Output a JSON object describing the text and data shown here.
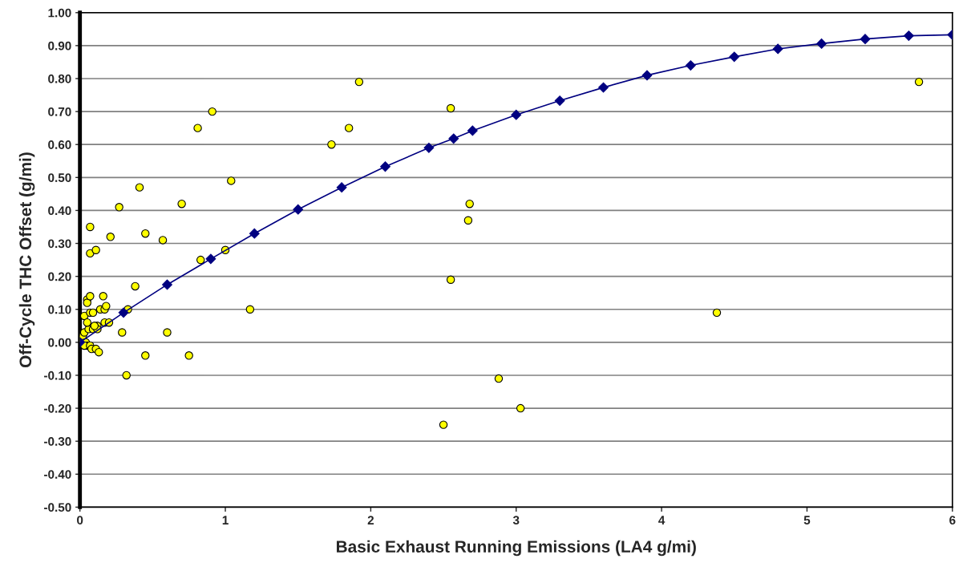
{
  "chart_data": {
    "type": "scatter",
    "xlabel": "Basic Exhaust Running Emissions (LA4 g/mi)",
    "ylabel": "Off-Cycle THC Offset (g/mi)",
    "xlim": [
      0,
      6
    ],
    "xticks": [
      0,
      1,
      2,
      3,
      4,
      5,
      6
    ],
    "ylim": [
      -0.5,
      1.0
    ],
    "yticks": [
      {
        "value": -0.5,
        "label": "-0.50"
      },
      {
        "value": -0.4,
        "label": "-0.40"
      },
      {
        "value": -0.3,
        "label": "-0.30"
      },
      {
        "value": -0.2,
        "label": "-0.20"
      },
      {
        "value": -0.1,
        "label": "-0.10"
      },
      {
        "value": 0,
        "label": "0.00"
      },
      {
        "value": 0.1,
        "label": "0.10"
      },
      {
        "value": 0.2,
        "label": "0.20"
      },
      {
        "value": 0.3,
        "label": "0.30"
      },
      {
        "value": 0.4,
        "label": "0.40"
      },
      {
        "value": 0.5,
        "label": "0.50"
      },
      {
        "value": 0.6,
        "label": "0.60"
      },
      {
        "value": 0.7,
        "label": "0.70"
      },
      {
        "value": 0.8,
        "label": "0.80"
      },
      {
        "value": 0.9,
        "label": "0.90"
      },
      {
        "value": 1.0,
        "label": "1.00"
      }
    ],
    "grid": "y",
    "legend": false,
    "series": [
      {
        "marker": "circle",
        "color": "#ffff00",
        "x": [
          0.03,
          0.05,
          0.05,
          0.07,
          0.07,
          0.07,
          0.07,
          0.09,
          0.11,
          0.12,
          0.14,
          0.16,
          0.17,
          0.18,
          0.17,
          0.2,
          0.21,
          0.27,
          0.29,
          0.32,
          0.33,
          0.38,
          0.41,
          0.45,
          0.45,
          0.57,
          0.6,
          0.7,
          0.75,
          0.81,
          0.83,
          0.91,
          1.0,
          1.04,
          1.17,
          1.73,
          1.85,
          1.92,
          2.5,
          2.55,
          2.55,
          2.67,
          2.68,
          2.88,
          3.03,
          4.38,
          5.77,
          0.01,
          0.02,
          0.03,
          0.04,
          0.05,
          0.03,
          0.06,
          0.07,
          0.09,
          0.08,
          0.11,
          0.13,
          0.05,
          0.12,
          0.1
        ],
        "values": [
          0.08,
          0.13,
          0.12,
          0.35,
          0.27,
          0.14,
          0.09,
          0.09,
          0.28,
          0.05,
          0.1,
          0.14,
          0.1,
          0.11,
          0.06,
          0.06,
          0.32,
          0.41,
          0.03,
          -0.1,
          0.1,
          0.17,
          0.47,
          0.33,
          -0.04,
          0.31,
          0.03,
          0.42,
          -0.04,
          0.65,
          0.25,
          0.7,
          0.28,
          0.49,
          0.1,
          0.6,
          0.65,
          0.79,
          -0.25,
          0.71,
          0.19,
          0.37,
          0.42,
          -0.11,
          -0.2,
          0.09,
          0.79,
          0.01,
          0.02,
          0.03,
          0.0,
          -0.01,
          -0.01,
          0.04,
          -0.01,
          0.04,
          -0.02,
          -0.02,
          -0.03,
          0.06,
          0.04,
          0.05
        ]
      },
      {
        "type": "line",
        "marker": "diamond",
        "color": "#000080",
        "line_style": "solid",
        "x": [
          0,
          0.3,
          0.6,
          0.9,
          1.2,
          1.5,
          1.8,
          2.1,
          2.4,
          2.57,
          2.7,
          3.0,
          3.3,
          3.6,
          3.9,
          4.2,
          4.5,
          4.8,
          5.1,
          5.4,
          5.7,
          6.0
        ],
        "values": [
          0,
          0.09,
          0.175,
          0.253,
          0.33,
          0.403,
          0.47,
          0.533,
          0.59,
          0.618,
          0.642,
          0.69,
          0.733,
          0.773,
          0.81,
          0.84,
          0.866,
          0.89,
          0.906,
          0.92,
          0.93,
          0.933
        ]
      }
    ]
  }
}
